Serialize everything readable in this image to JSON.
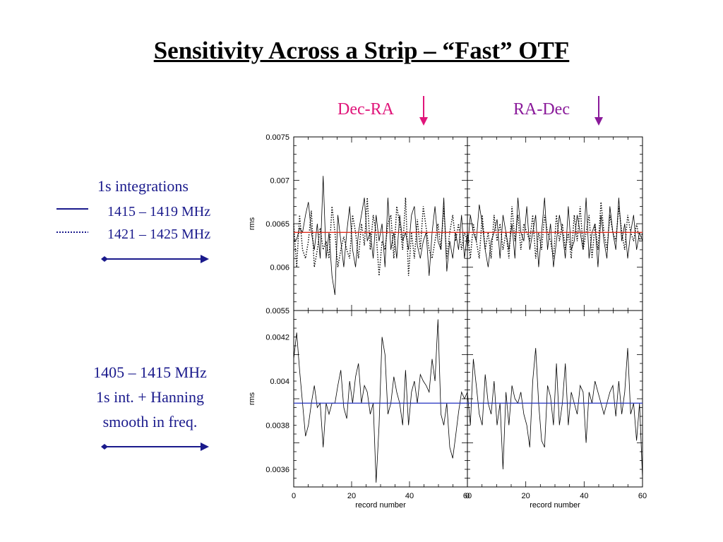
{
  "title": "Sensitivity Across a Strip – “Fast” OTF",
  "headers": {
    "dec_ra": "Dec-RA",
    "ra_dec": "RA-Dec",
    "dec_ra_color": "#e0157a",
    "ra_dec_color": "#8a1a9a"
  },
  "legend_top": {
    "heading": "1s integrations",
    "solid_label": "1415 – 1419 MHz",
    "dotted_label": "1421 – 1425 MHz"
  },
  "legend_bottom": {
    "line1": "1405 – 1415 MHz",
    "line2": "1s int. + Hanning",
    "line3": "smooth in freq."
  },
  "chart_data": [
    {
      "type": "line",
      "panel": "top-left",
      "ylabel": "rms",
      "xlim": [
        0,
        60
      ],
      "ylim": [
        0.0055,
        0.0075
      ],
      "yticks": [
        "0.0075",
        "0.007",
        "0.0065",
        "0.006",
        "0.0055"
      ],
      "reference_line": {
        "y": 0.0064,
        "color": "#e03020"
      },
      "series": [
        {
          "style": "solid",
          "values": [
            0.0063,
            0.00632,
            0.00645,
            0.0064,
            0.0066,
            0.00675,
            0.0064,
            0.0062,
            0.0065,
            0.0061,
            0.00705,
            0.0061,
            0.0064,
            0.0059,
            0.00568,
            0.0066,
            0.0063,
            0.006,
            0.0064,
            0.0067,
            0.0062,
            0.006,
            0.0064,
            0.0066,
            0.0068,
            0.0063,
            0.0064,
            0.0061,
            0.0066,
            0.0063,
            0.0065,
            0.006,
            0.0068,
            0.0062,
            0.0064,
            0.0061,
            0.0066,
            0.0063,
            0.0064,
            0.0062,
            0.0066,
            0.0067,
            0.00625,
            0.0061,
            0.0063,
            0.0064,
            0.0059,
            0.0064,
            0.0067,
            0.0063,
            0.0062,
            0.0068,
            0.00595,
            0.0063,
            0.0061,
            0.0064,
            0.0062,
            0.0066,
            0.0061,
            0.0064
          ]
        },
        {
          "style": "dotted",
          "values": [
            0.0065,
            0.006,
            0.0066,
            0.0062,
            0.0061,
            0.0063,
            0.00665,
            0.006,
            0.0062,
            0.00645,
            0.0062,
            0.0063,
            0.0061,
            0.0067,
            0.0064,
            0.006,
            0.0062,
            0.00635,
            0.0062,
            0.0061,
            0.0066,
            0.0064,
            0.0061,
            0.0065,
            0.00625,
            0.0068,
            0.0062,
            0.0066,
            0.0064,
            0.0059,
            0.0063,
            0.0062,
            0.0065,
            0.0066,
            0.0061,
            0.0067,
            0.0065,
            0.0062,
            0.0068,
            0.0059,
            0.0064,
            0.0061,
            0.00655,
            0.0062,
            0.0067,
            0.00645,
            0.0062,
            0.0061,
            0.0063,
            0.0065,
            0.0062,
            0.0067,
            0.0061,
            0.0064,
            0.0066,
            0.0063,
            0.0065,
            0.0062,
            0.0064,
            0.0063
          ]
        }
      ]
    },
    {
      "type": "line",
      "panel": "top-right",
      "xlim": [
        0,
        60
      ],
      "ylim": [
        0.0055,
        0.0075
      ],
      "reference_line": {
        "y": 0.0064,
        "color": "#e03020"
      },
      "series": [
        {
          "style": "solid",
          "values": [
            0.0062,
            0.0066,
            0.0064,
            0.0063,
            0.00672,
            0.0065,
            0.0062,
            0.006,
            0.0063,
            0.0064,
            0.00655,
            0.0061,
            0.0066,
            0.0064,
            0.0062,
            0.0065,
            0.0061,
            0.0068,
            0.0064,
            0.0063,
            0.0067,
            0.0062,
            0.0064,
            0.0066,
            0.006,
            0.0064,
            0.0068,
            0.0062,
            0.0065,
            0.006,
            0.0063,
            0.0066,
            0.0064,
            0.0061,
            0.0067,
            0.0062,
            0.0063,
            0.0066,
            0.0064,
            0.0062,
            0.0068,
            0.0061,
            0.0064,
            0.0065,
            0.006,
            0.0066,
            0.0063,
            0.0061,
            0.0067,
            0.0064,
            0.0062,
            0.0068,
            0.0063,
            0.0065,
            0.0061,
            0.0064,
            0.0066,
            0.0062,
            0.0064,
            0.0063
          ]
        },
        {
          "style": "dotted",
          "values": [
            0.0064,
            0.0061,
            0.0065,
            0.0063,
            0.0061,
            0.0066,
            0.0062,
            0.0064,
            0.0061,
            0.0066,
            0.0063,
            0.0065,
            0.0062,
            0.0064,
            0.0061,
            0.0067,
            0.0063,
            0.0066,
            0.0062,
            0.0065,
            0.0064,
            0.0063,
            0.0066,
            0.0061,
            0.0064,
            0.0062,
            0.0066,
            0.0064,
            0.0063,
            0.0061,
            0.0066,
            0.0063,
            0.0065,
            0.0062,
            0.0064,
            0.0061,
            0.0066,
            0.0063,
            0.0067,
            0.0062,
            0.0064,
            0.0066,
            0.0061,
            0.0065,
            0.0062,
            0.00675,
            0.0064,
            0.0062,
            0.0066,
            0.0064,
            0.0063,
            0.0067,
            0.0064,
            0.0062,
            0.0066,
            0.0064,
            0.0063,
            0.0065,
            0.0063,
            0.0064
          ]
        }
      ]
    },
    {
      "type": "line",
      "panel": "bottom-left",
      "ylabel": "rms",
      "xlabel": "record number",
      "xlim": [
        0,
        60
      ],
      "ylim": [
        0.00352,
        0.00432
      ],
      "xticks": [
        "0",
        "20",
        "40",
        "60"
      ],
      "yticks": [
        "0.0042",
        "0.004",
        "0.0038",
        "0.0036"
      ],
      "reference_line": {
        "y": 0.0039,
        "color": "#2030c0"
      },
      "series": [
        {
          "style": "solid",
          "values": [
            0.0041,
            0.00422,
            0.00405,
            0.0039,
            0.00375,
            0.0038,
            0.0039,
            0.00398,
            0.00388,
            0.0039,
            0.0037,
            0.0039,
            0.00385,
            0.0039,
            0.0039,
            0.00398,
            0.00405,
            0.00388,
            0.00383,
            0.004,
            0.0039,
            0.00402,
            0.00408,
            0.0039,
            0.00398,
            0.00395,
            0.00385,
            0.0039,
            0.00354,
            0.0038,
            0.0042,
            0.00412,
            0.00385,
            0.0039,
            0.00402,
            0.00395,
            0.0039,
            0.0038,
            0.00405,
            0.0038,
            0.00395,
            0.004,
            0.0039,
            0.00403,
            0.004,
            0.00398,
            0.00395,
            0.0041,
            0.004,
            0.00428,
            0.00385,
            0.0038,
            0.0039,
            0.0037,
            0.00365,
            0.00375,
            0.00386,
            0.00395,
            0.00392,
            0.00395
          ]
        }
      ]
    },
    {
      "type": "line",
      "panel": "bottom-right",
      "xlabel": "record number",
      "xlim": [
        0,
        60
      ],
      "ylim": [
        0.00352,
        0.00432
      ],
      "xticks": [
        "0",
        "20",
        "40",
        "60"
      ],
      "reference_line": {
        "y": 0.0039,
        "color": "#2030c0"
      },
      "series": [
        {
          "style": "solid",
          "values": [
            0.00395,
            0.0038,
            0.0041,
            0.00398,
            0.00385,
            0.0038,
            0.00403,
            0.0039,
            0.00385,
            0.004,
            0.0038,
            0.0039,
            0.0036,
            0.00395,
            0.0038,
            0.00398,
            0.00392,
            0.0039,
            0.00395,
            0.00385,
            0.0038,
            0.0037,
            0.004,
            0.00415,
            0.0039,
            0.00373,
            0.0037,
            0.00398,
            0.00393,
            0.0038,
            0.00408,
            0.0038,
            0.0039,
            0.00408,
            0.0038,
            0.00395,
            0.0039,
            0.00385,
            0.00398,
            0.00395,
            0.00372,
            0.00395,
            0.0039,
            0.004,
            0.00395,
            0.0039,
            0.00385,
            0.0039,
            0.00395,
            0.00398,
            0.00384,
            0.004,
            0.00385,
            0.00395,
            0.00415,
            0.00385,
            0.0039,
            0.00373,
            0.0039,
            0.00356
          ]
        }
      ]
    }
  ]
}
